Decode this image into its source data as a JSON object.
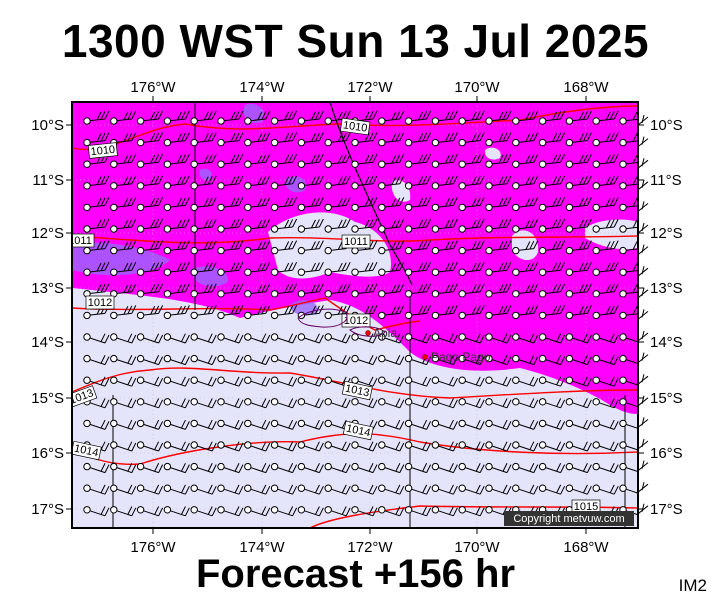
{
  "title": "1300 WST Sun 13 Jul 2025",
  "footer": "Forecast +156 hr",
  "model": "IM2",
  "copyright": "Copyright metvuw.com",
  "colors": {
    "high_wind": "#ff00ff",
    "core_wind": "#9966ff",
    "calm": "#e4e4fa",
    "isobar": "#ff0000",
    "frame": "#000000"
  },
  "axes": {
    "lon_labels": [
      "176°W",
      "174°W",
      "172°W",
      "170°W",
      "168°W"
    ],
    "lat_labels": [
      "10°S",
      "11°S",
      "12°S",
      "13°S",
      "14°S",
      "15°S",
      "16°S",
      "17°S"
    ]
  },
  "isobars": [
    {
      "value": "1010",
      "label_text": "1010"
    },
    {
      "value": "1010",
      "label_text": "1010"
    },
    {
      "value": "1011",
      "label_text": "1011"
    },
    {
      "value": "1011",
      "label_text": "1011"
    },
    {
      "value": "1012",
      "label_text": "1012"
    },
    {
      "value": "1012",
      "label_text": "1012"
    },
    {
      "value": "1013",
      "label_text": "1013"
    },
    {
      "value": "1013",
      "label_text": "1013"
    },
    {
      "value": "1014",
      "label_text": "1014"
    },
    {
      "value": "1014",
      "label_text": "1014"
    },
    {
      "value": "1015",
      "label_text": "1015"
    }
  ],
  "places": [
    {
      "name": "Apia"
    },
    {
      "name": "Pago Pago"
    }
  ]
}
